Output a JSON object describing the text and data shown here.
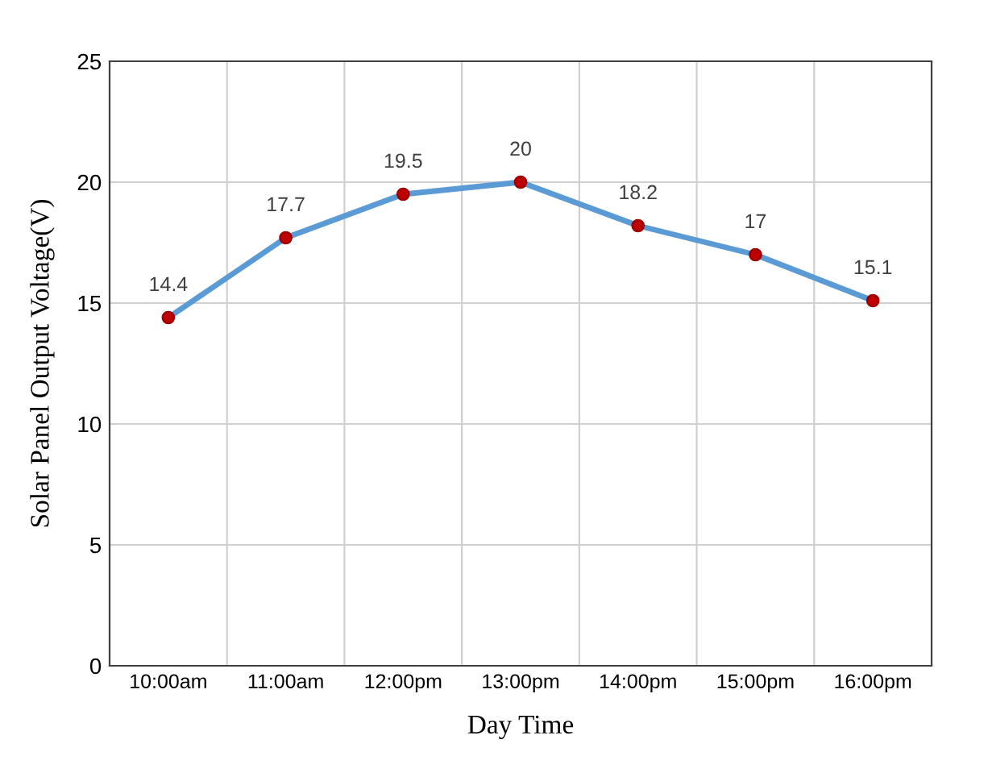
{
  "chart_data": {
    "type": "line",
    "xlabel": "Day Time",
    "ylabel": "Solar Panel Output Voltage(V)",
    "categories": [
      "10:00am",
      "11:00am",
      "12:00pm",
      "13:00pm",
      "14:00pm",
      "15:00pm",
      "16:00pm"
    ],
    "series": [
      {
        "color": "#5b9bd5",
        "values": [
          14.4,
          17.7,
          19.5,
          20,
          18.2,
          17,
          15.1
        ]
      }
    ],
    "ylim": [
      0,
      25
    ],
    "yticks": [
      0,
      5,
      10,
      15,
      20,
      25
    ],
    "grid": true,
    "marker": "circle",
    "line_style": "solid",
    "data_labels": true
  }
}
